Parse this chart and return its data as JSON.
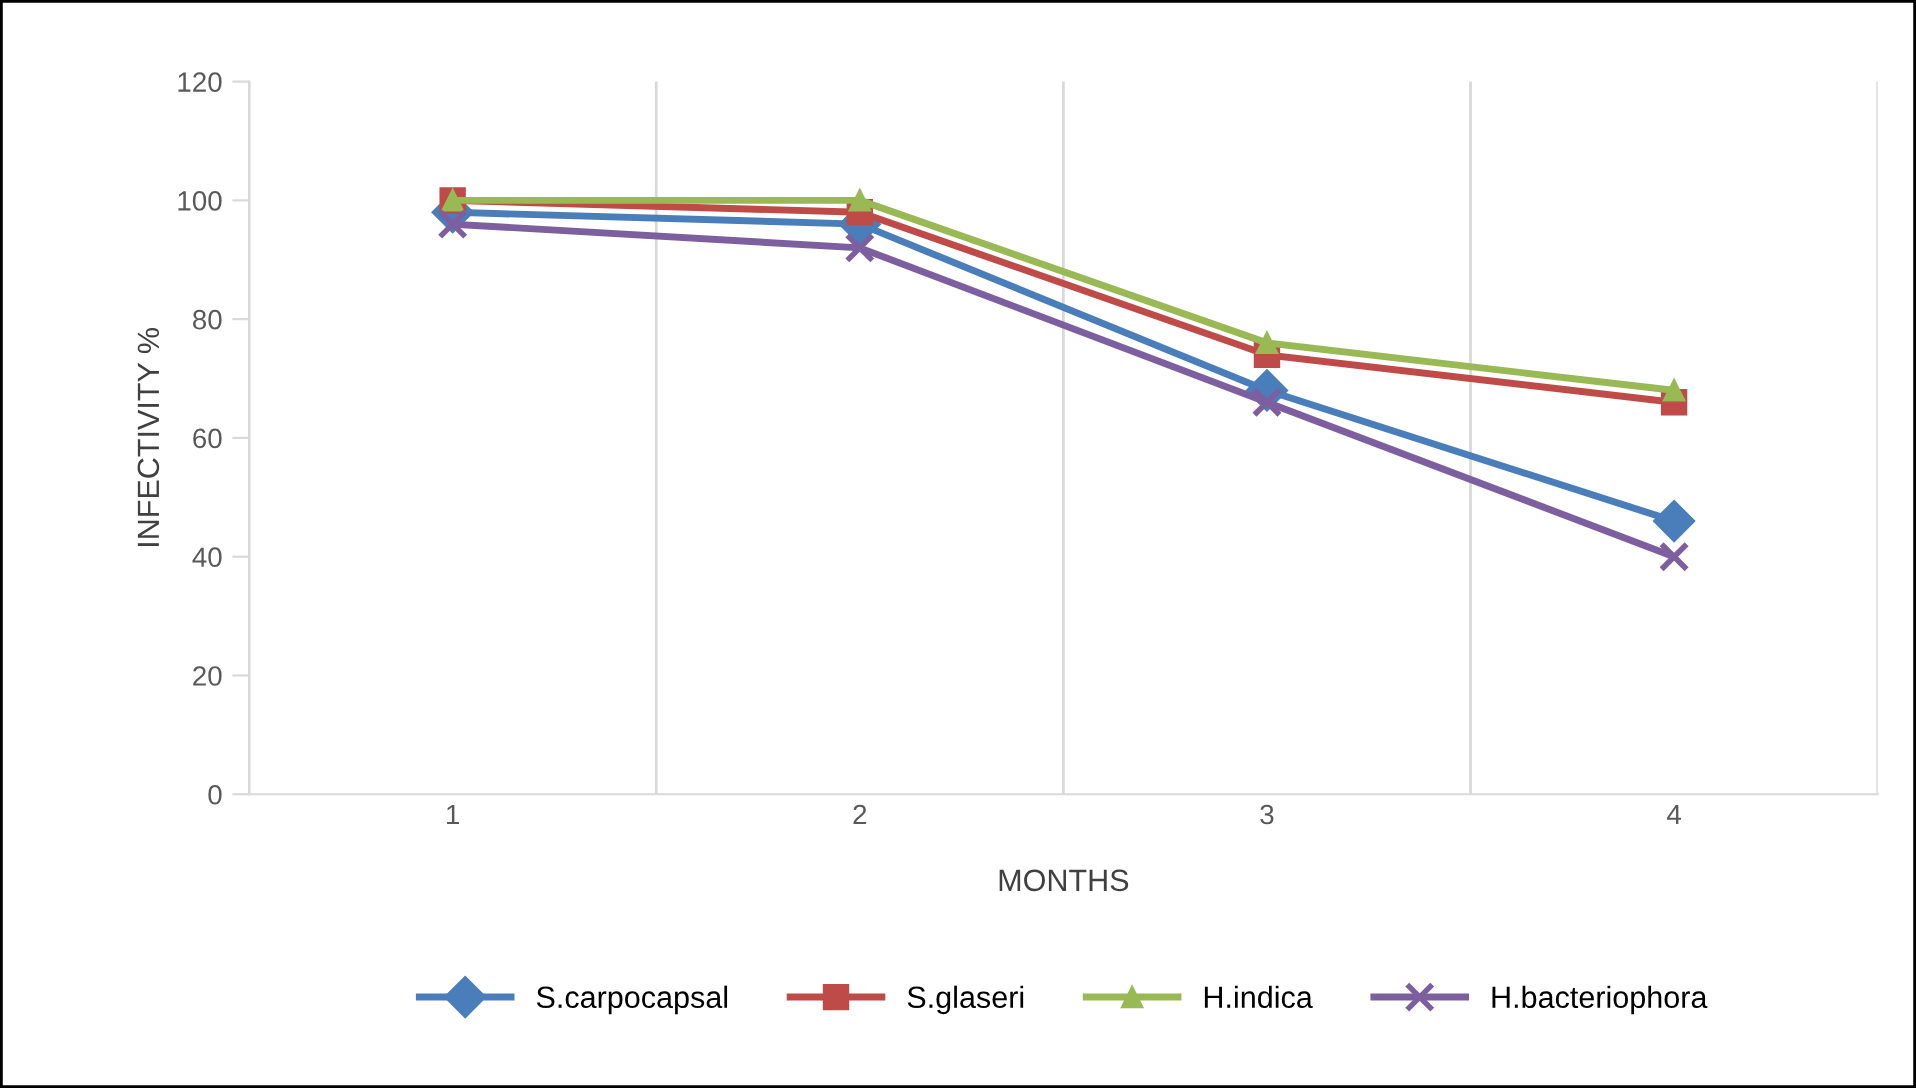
{
  "chart_data": {
    "type": "line",
    "xlabel": "MONTHS",
    "ylabel": "INFECTIVITY %",
    "categories": [
      "1",
      "2",
      "3",
      "4"
    ],
    "series": [
      {
        "name": "S.carpocapsal",
        "color": "#4a7ebb",
        "marker": "diamond",
        "values": [
          98,
          96,
          68,
          46
        ]
      },
      {
        "name": "S.glaseri",
        "color": "#be4b48",
        "marker": "square",
        "values": [
          100,
          98,
          74,
          66
        ]
      },
      {
        "name": "H.indica",
        "color": "#98b954",
        "marker": "triangle",
        "values": [
          100,
          100,
          76,
          68
        ]
      },
      {
        "name": "H.bacteriophora",
        "color": "#7d5fa0",
        "marker": "cross",
        "values": [
          96,
          92,
          66,
          40
        ]
      }
    ],
    "ylim": [
      0,
      120
    ],
    "yticks": [
      0,
      20,
      40,
      60,
      80,
      100,
      120
    ],
    "grid": "x",
    "legend": "bottom",
    "line_style": "solid"
  }
}
